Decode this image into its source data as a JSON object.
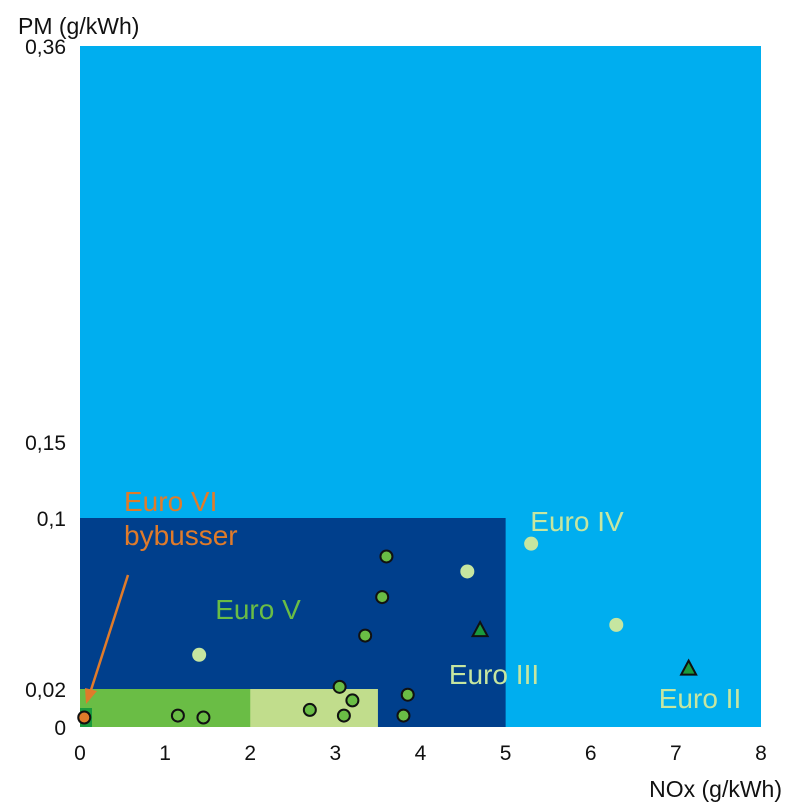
{
  "chart_data": {
    "type": "scatter",
    "xlabel": "NOx (g/kWh)",
    "ylabel": "PM (g/kWh)",
    "xlim": [
      0,
      8
    ],
    "x_ticks": [
      "0",
      "1",
      "2",
      "3",
      "4",
      "5",
      "6",
      "7",
      "8"
    ],
    "y_ticks": [
      {
        "value": 0.36,
        "label": "0,36"
      },
      {
        "value": 0.15,
        "label": "0,15"
      },
      {
        "value": 0.1,
        "label": "0,1"
      },
      {
        "value": 0.02,
        "label": "0,02"
      },
      {
        "value": 0,
        "label": "0"
      }
    ],
    "regions": [
      {
        "name": "Euro II",
        "nox_limit": 7.0,
        "pm_limit": 0.15,
        "color": "#00aeef",
        "label_color": "#c6e6a0"
      },
      {
        "name": "Euro III",
        "nox_limit": 5.0,
        "pm_limit": 0.1,
        "color": "#1c74bb",
        "label_color": "#c6e6a0"
      },
      {
        "name": "Euro IV",
        "nox_limit": 3.5,
        "pm_limit": 0.02,
        "color": "#c1dd8c",
        "label_color": "#c6e6a0"
      },
      {
        "name": "Euro V",
        "nox_limit": 2.0,
        "pm_limit": 0.02,
        "color": "#6abd45",
        "label_color": "#6abd45"
      },
      {
        "name": "Euro VI\nbybusser",
        "nox_limit": 0.4,
        "pm_limit": 0.01,
        "color": "#1a9a3d",
        "label_color": "#e07b2a"
      }
    ],
    "plot_background": "#00aeef",
    "euro_iii_band_color": "#003f8c",
    "series": [
      {
        "name": "Euro VI",
        "marker": "circle",
        "fill": "#e07b2a",
        "outline": true,
        "points": [
          {
            "x": 0.05,
            "y": 0.005
          }
        ]
      },
      {
        "name": "Euro V",
        "marker": "circle",
        "fill": "#6abd45",
        "outline": true,
        "points": [
          {
            "x": 1.15,
            "y": 0.006
          },
          {
            "x": 1.45,
            "y": 0.005
          },
          {
            "x": 2.7,
            "y": 0.009
          },
          {
            "x": 3.05,
            "y": 0.021
          },
          {
            "x": 3.1,
            "y": 0.006
          },
          {
            "x": 3.2,
            "y": 0.014
          },
          {
            "x": 3.35,
            "y": 0.045
          },
          {
            "x": 3.55,
            "y": 0.063
          },
          {
            "x": 3.6,
            "y": 0.082
          },
          {
            "x": 3.8,
            "y": 0.006
          },
          {
            "x": 3.85,
            "y": 0.017
          }
        ]
      },
      {
        "name": "Euro IV",
        "marker": "circle",
        "fill": "#c6e6a0",
        "outline": false,
        "points": [
          {
            "x": 1.4,
            "y": 0.036
          },
          {
            "x": 4.55,
            "y": 0.075
          },
          {
            "x": 5.3,
            "y": 0.088
          },
          {
            "x": 6.3,
            "y": 0.05
          }
        ]
      },
      {
        "name": "Euro III",
        "marker": "triangle",
        "fill": "#1a9a3d",
        "outline": true,
        "points": [
          {
            "x": 4.7,
            "y": 0.048
          },
          {
            "x": 7.15,
            "y": 0.03
          }
        ]
      }
    ]
  }
}
